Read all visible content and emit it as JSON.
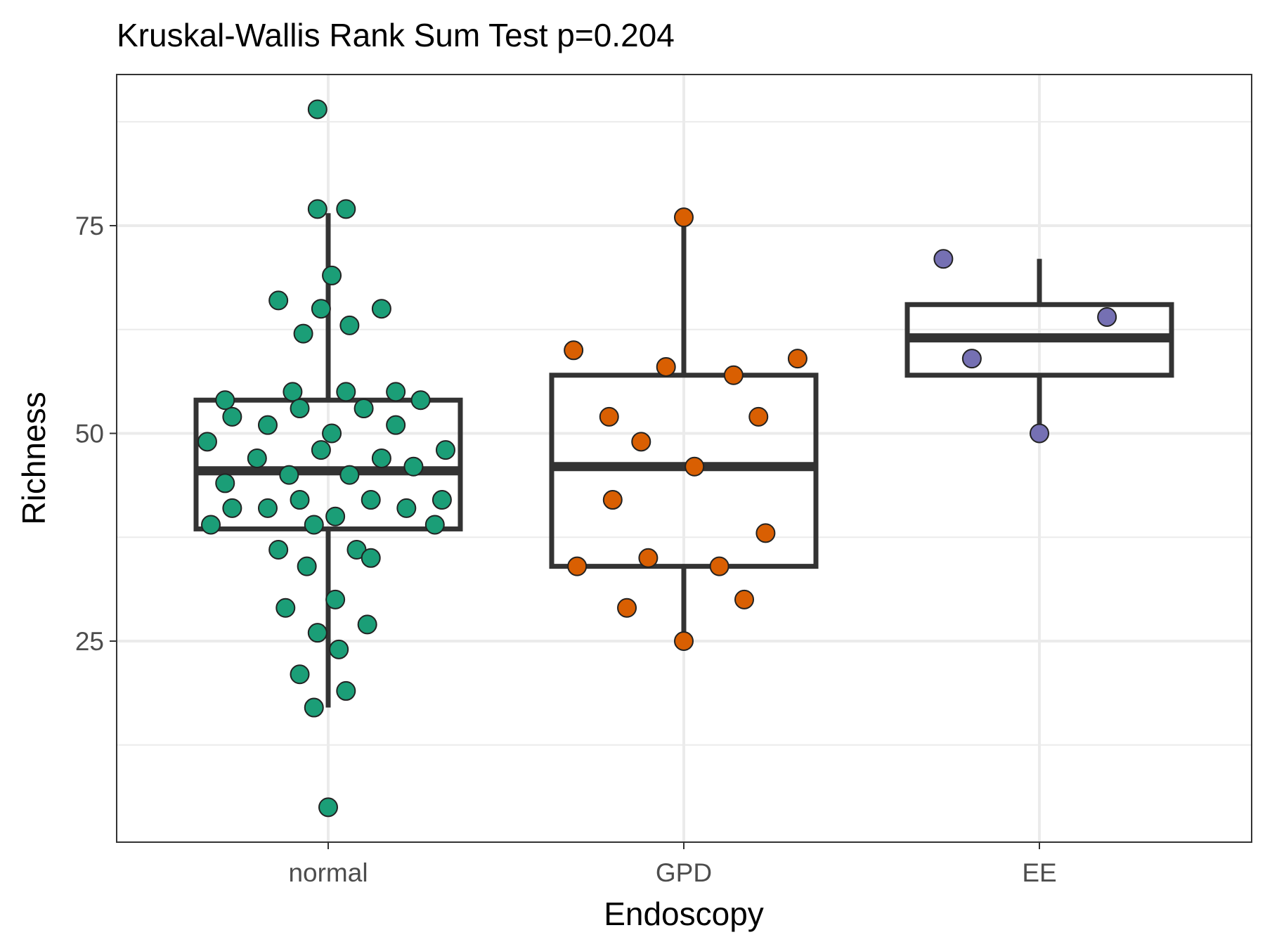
{
  "chart_data": {
    "type": "boxplot",
    "title": "Kruskal-Wallis Rank Sum Test p=0.204",
    "xlabel": "Endoscopy",
    "ylabel": "Richness",
    "ylim": [
      3,
      95
    ],
    "yticks": [
      25,
      50,
      75
    ],
    "grid": true,
    "categories": [
      "normal",
      "GPD",
      "EE"
    ],
    "colors": {
      "normal": "#1b9e77",
      "GPD": "#d95f02",
      "EE": "#7570b3",
      "box": "#333333",
      "grid": "#ebebeb",
      "point_outline": "#222222"
    },
    "boxes": [
      {
        "category": "normal",
        "whisker_low": 17,
        "q1": 38.5,
        "median": 45.5,
        "q3": 54,
        "whisker_high": 76.5
      },
      {
        "category": "GPD",
        "whisker_low": 25,
        "q1": 34,
        "median": 46,
        "q3": 57,
        "whisker_high": 76
      },
      {
        "category": "EE",
        "whisker_low": 50,
        "q1": 57,
        "median": 61.5,
        "q3": 65.5,
        "whisker_high": 71
      }
    ],
    "points": {
      "normal": [
        {
          "dx": -0.03,
          "y": 89
        },
        {
          "dx": -0.03,
          "y": 77
        },
        {
          "dx": 0.05,
          "y": 77
        },
        {
          "dx": 0.01,
          "y": 69
        },
        {
          "dx": -0.14,
          "y": 66
        },
        {
          "dx": -0.02,
          "y": 65
        },
        {
          "dx": 0.15,
          "y": 65
        },
        {
          "dx": -0.07,
          "y": 62
        },
        {
          "dx": 0.06,
          "y": 63
        },
        {
          "dx": -0.1,
          "y": 55
        },
        {
          "dx": 0.05,
          "y": 55
        },
        {
          "dx": 0.19,
          "y": 55
        },
        {
          "dx": -0.29,
          "y": 54
        },
        {
          "dx": 0.26,
          "y": 54
        },
        {
          "dx": -0.08,
          "y": 53
        },
        {
          "dx": 0.1,
          "y": 53
        },
        {
          "dx": -0.27,
          "y": 52
        },
        {
          "dx": -0.17,
          "y": 51
        },
        {
          "dx": 0.19,
          "y": 51
        },
        {
          "dx": 0.01,
          "y": 50
        },
        {
          "dx": -0.34,
          "y": 49
        },
        {
          "dx": -0.02,
          "y": 48
        },
        {
          "dx": 0.33,
          "y": 48
        },
        {
          "dx": -0.2,
          "y": 47
        },
        {
          "dx": 0.15,
          "y": 47
        },
        {
          "dx": 0.24,
          "y": 46
        },
        {
          "dx": -0.11,
          "y": 45
        },
        {
          "dx": 0.06,
          "y": 45
        },
        {
          "dx": -0.29,
          "y": 44
        },
        {
          "dx": -0.08,
          "y": 42
        },
        {
          "dx": 0.12,
          "y": 42
        },
        {
          "dx": 0.32,
          "y": 42
        },
        {
          "dx": -0.27,
          "y": 41
        },
        {
          "dx": -0.17,
          "y": 41
        },
        {
          "dx": 0.22,
          "y": 41
        },
        {
          "dx": 0.02,
          "y": 40
        },
        {
          "dx": -0.33,
          "y": 39
        },
        {
          "dx": -0.04,
          "y": 39
        },
        {
          "dx": 0.3,
          "y": 39
        },
        {
          "dx": -0.14,
          "y": 36
        },
        {
          "dx": 0.08,
          "y": 36
        },
        {
          "dx": 0.12,
          "y": 35
        },
        {
          "dx": -0.06,
          "y": 34
        },
        {
          "dx": 0.02,
          "y": 30
        },
        {
          "dx": -0.12,
          "y": 29
        },
        {
          "dx": 0.11,
          "y": 27
        },
        {
          "dx": -0.03,
          "y": 26
        },
        {
          "dx": 0.03,
          "y": 24
        },
        {
          "dx": -0.08,
          "y": 21
        },
        {
          "dx": 0.05,
          "y": 19
        },
        {
          "dx": -0.04,
          "y": 17
        },
        {
          "dx": 0.0,
          "y": 5
        }
      ],
      "GPD": [
        {
          "dx": 0.0,
          "y": 76
        },
        {
          "dx": -0.31,
          "y": 60
        },
        {
          "dx": 0.32,
          "y": 59
        },
        {
          "dx": -0.05,
          "y": 58
        },
        {
          "dx": 0.14,
          "y": 57
        },
        {
          "dx": -0.21,
          "y": 52
        },
        {
          "dx": 0.21,
          "y": 52
        },
        {
          "dx": -0.12,
          "y": 49
        },
        {
          "dx": 0.03,
          "y": 46
        },
        {
          "dx": -0.2,
          "y": 42
        },
        {
          "dx": 0.23,
          "y": 38
        },
        {
          "dx": -0.1,
          "y": 35
        },
        {
          "dx": -0.3,
          "y": 34
        },
        {
          "dx": 0.1,
          "y": 34
        },
        {
          "dx": 0.17,
          "y": 30
        },
        {
          "dx": -0.16,
          "y": 29
        },
        {
          "dx": 0.0,
          "y": 25
        }
      ],
      "EE": [
        {
          "dx": -0.27,
          "y": 71
        },
        {
          "dx": 0.19,
          "y": 64
        },
        {
          "dx": -0.19,
          "y": 59
        },
        {
          "dx": 0.0,
          "y": 50
        }
      ]
    }
  }
}
